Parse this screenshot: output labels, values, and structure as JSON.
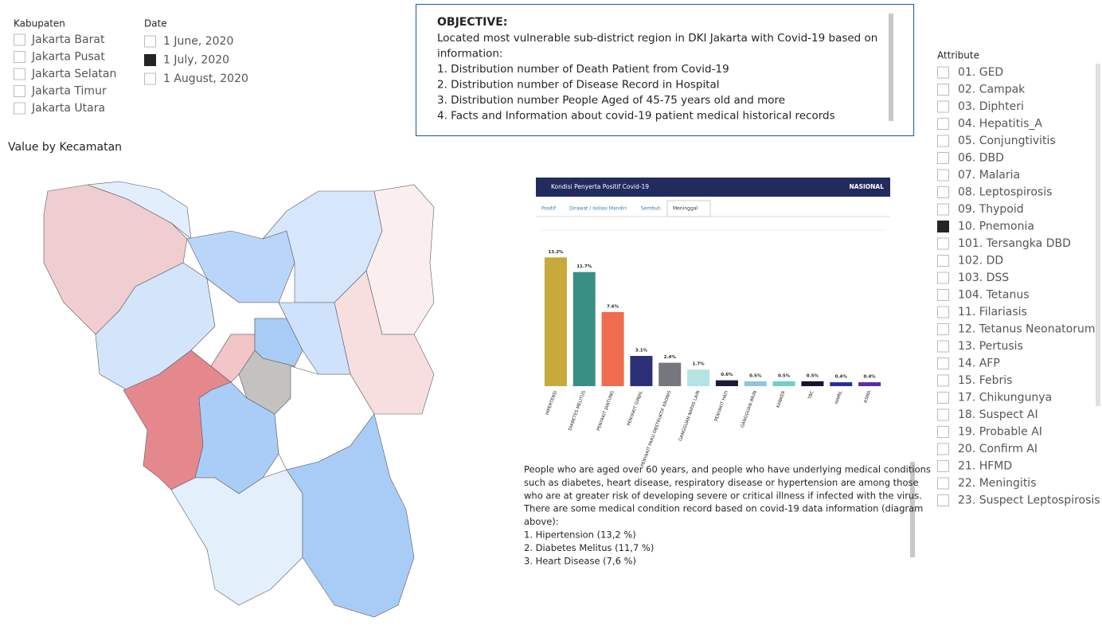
{
  "kabupaten": {
    "title": "Kabupaten",
    "items": [
      {
        "label": "Jakarta Barat",
        "checked": false
      },
      {
        "label": "Jakarta Pusat",
        "checked": false
      },
      {
        "label": "Jakarta Selatan",
        "checked": false
      },
      {
        "label": "Jakarta Timur",
        "checked": false
      },
      {
        "label": "Jakarta Utara",
        "checked": false
      }
    ]
  },
  "date": {
    "title": "Date",
    "items": [
      {
        "label": "1 June, 2020",
        "checked": false
      },
      {
        "label": "1 July, 2020",
        "checked": true
      },
      {
        "label": "1 August, 2020",
        "checked": false
      }
    ]
  },
  "objective": {
    "title": "OBJECTIVE:",
    "lines": [
      "Located most vulnerable sub-district region in DKI Jakarta with Covid-19 based on",
      "information:",
      "1. Distribution number of Death Patient from Covid-19",
      "2. Distribution number of Disease Record in Hospital",
      "3. Distribution number People Aged of 45-75 years old and more",
      "4. Facts and Information about covid-19 patient medical historical records"
    ]
  },
  "map": {
    "title": "Value by Kecamatan"
  },
  "chart_data": {
    "type": "bar",
    "title": "Kondisi Penyerta Positif Covid-19",
    "badge": "NASIONAL",
    "tabs": [
      "Positif",
      "Dirawat / Isolasi Mandiri",
      "Sembuh",
      "Meninggal"
    ],
    "active_tab": "Meninggal",
    "categories": [
      "HIPERTENSI",
      "DIABETES MELITUS",
      "PENYAKIT JANTUNG",
      "PENYAKIT GINJAL",
      "PENYAKIT PARU OBSTRUKTIF KRONIS",
      "GANGGUAN NAPAS LAIN",
      "PENYAKIT HATI",
      "GANGGUAN IMUN",
      "KANKER",
      "TBC",
      "HAMIL",
      "ASMA"
    ],
    "values": [
      13.2,
      11.7,
      7.6,
      3.1,
      2.4,
      1.7,
      0.6,
      0.5,
      0.5,
      0.5,
      0.4,
      0.4
    ],
    "value_labels": [
      "13.2%",
      "11.7%",
      "7.6%",
      "3.1%",
      "2.4%",
      "1.7%",
      "0.6%",
      "0.5%",
      "0.5%",
      "0.5%",
      "0.4%",
      "0.4%"
    ],
    "colors": [
      "#c8a93c",
      "#3a8f84",
      "#ef6c4f",
      "#2b3077",
      "#76767e",
      "#b4e4e2",
      "#1a1a3a",
      "#8ec6e0",
      "#6cd0cc",
      "#141433",
      "#2a2a9a",
      "#5c2aa0"
    ],
    "ylim": [
      0,
      16
    ]
  },
  "note": {
    "lines": [
      "People who are aged over 60 years, and people who have underlying medical conditions",
      "such as diabetes, heart disease, respiratory disease or hypertension are among those",
      "who are at greater risk of developing severe or critical illness if infected with the virus.",
      "There are some medical condition record based on covid-19 data information (diagram",
      "above):",
      "1. Hipertension (13,2 %)",
      "2. Diabetes Melitus (11,7 %)",
      "3. Heart Disease (7,6 %)"
    ]
  },
  "attribute": {
    "title": "Attribute",
    "items": [
      {
        "label": "01. GED",
        "checked": false
      },
      {
        "label": "02. Campak",
        "checked": false
      },
      {
        "label": "03. Diphteri",
        "checked": false
      },
      {
        "label": "04. Hepatitis_A",
        "checked": false
      },
      {
        "label": "05. Conjungtivitis",
        "checked": false
      },
      {
        "label": "06. DBD",
        "checked": false
      },
      {
        "label": "07. Malaria",
        "checked": false
      },
      {
        "label": "08. Leptospirosis",
        "checked": false
      },
      {
        "label": "09. Thypoid",
        "checked": false
      },
      {
        "label": "10. Pnemonia",
        "checked": true
      },
      {
        "label": "101. Tersangka DBD",
        "checked": false
      },
      {
        "label": "102. DD",
        "checked": false
      },
      {
        "label": "103. DSS",
        "checked": false
      },
      {
        "label": "104. Tetanus",
        "checked": false
      },
      {
        "label": "11. Filariasis",
        "checked": false
      },
      {
        "label": "12. Tetanus Neonatorum",
        "checked": false
      },
      {
        "label": "13. Pertusis",
        "checked": false
      },
      {
        "label": "14. AFP",
        "checked": false
      },
      {
        "label": "15. Febris",
        "checked": false
      },
      {
        "label": "17. Chikungunya",
        "checked": false
      },
      {
        "label": "18. Suspect AI",
        "checked": false
      },
      {
        "label": "19. Probable AI",
        "checked": false
      },
      {
        "label": "20. Confirm AI",
        "checked": false
      },
      {
        "label": "21. HFMD",
        "checked": false
      },
      {
        "label": "22. Meningitis",
        "checked": false
      },
      {
        "label": "23. Suspect Leptospirosis",
        "checked": false
      }
    ]
  }
}
